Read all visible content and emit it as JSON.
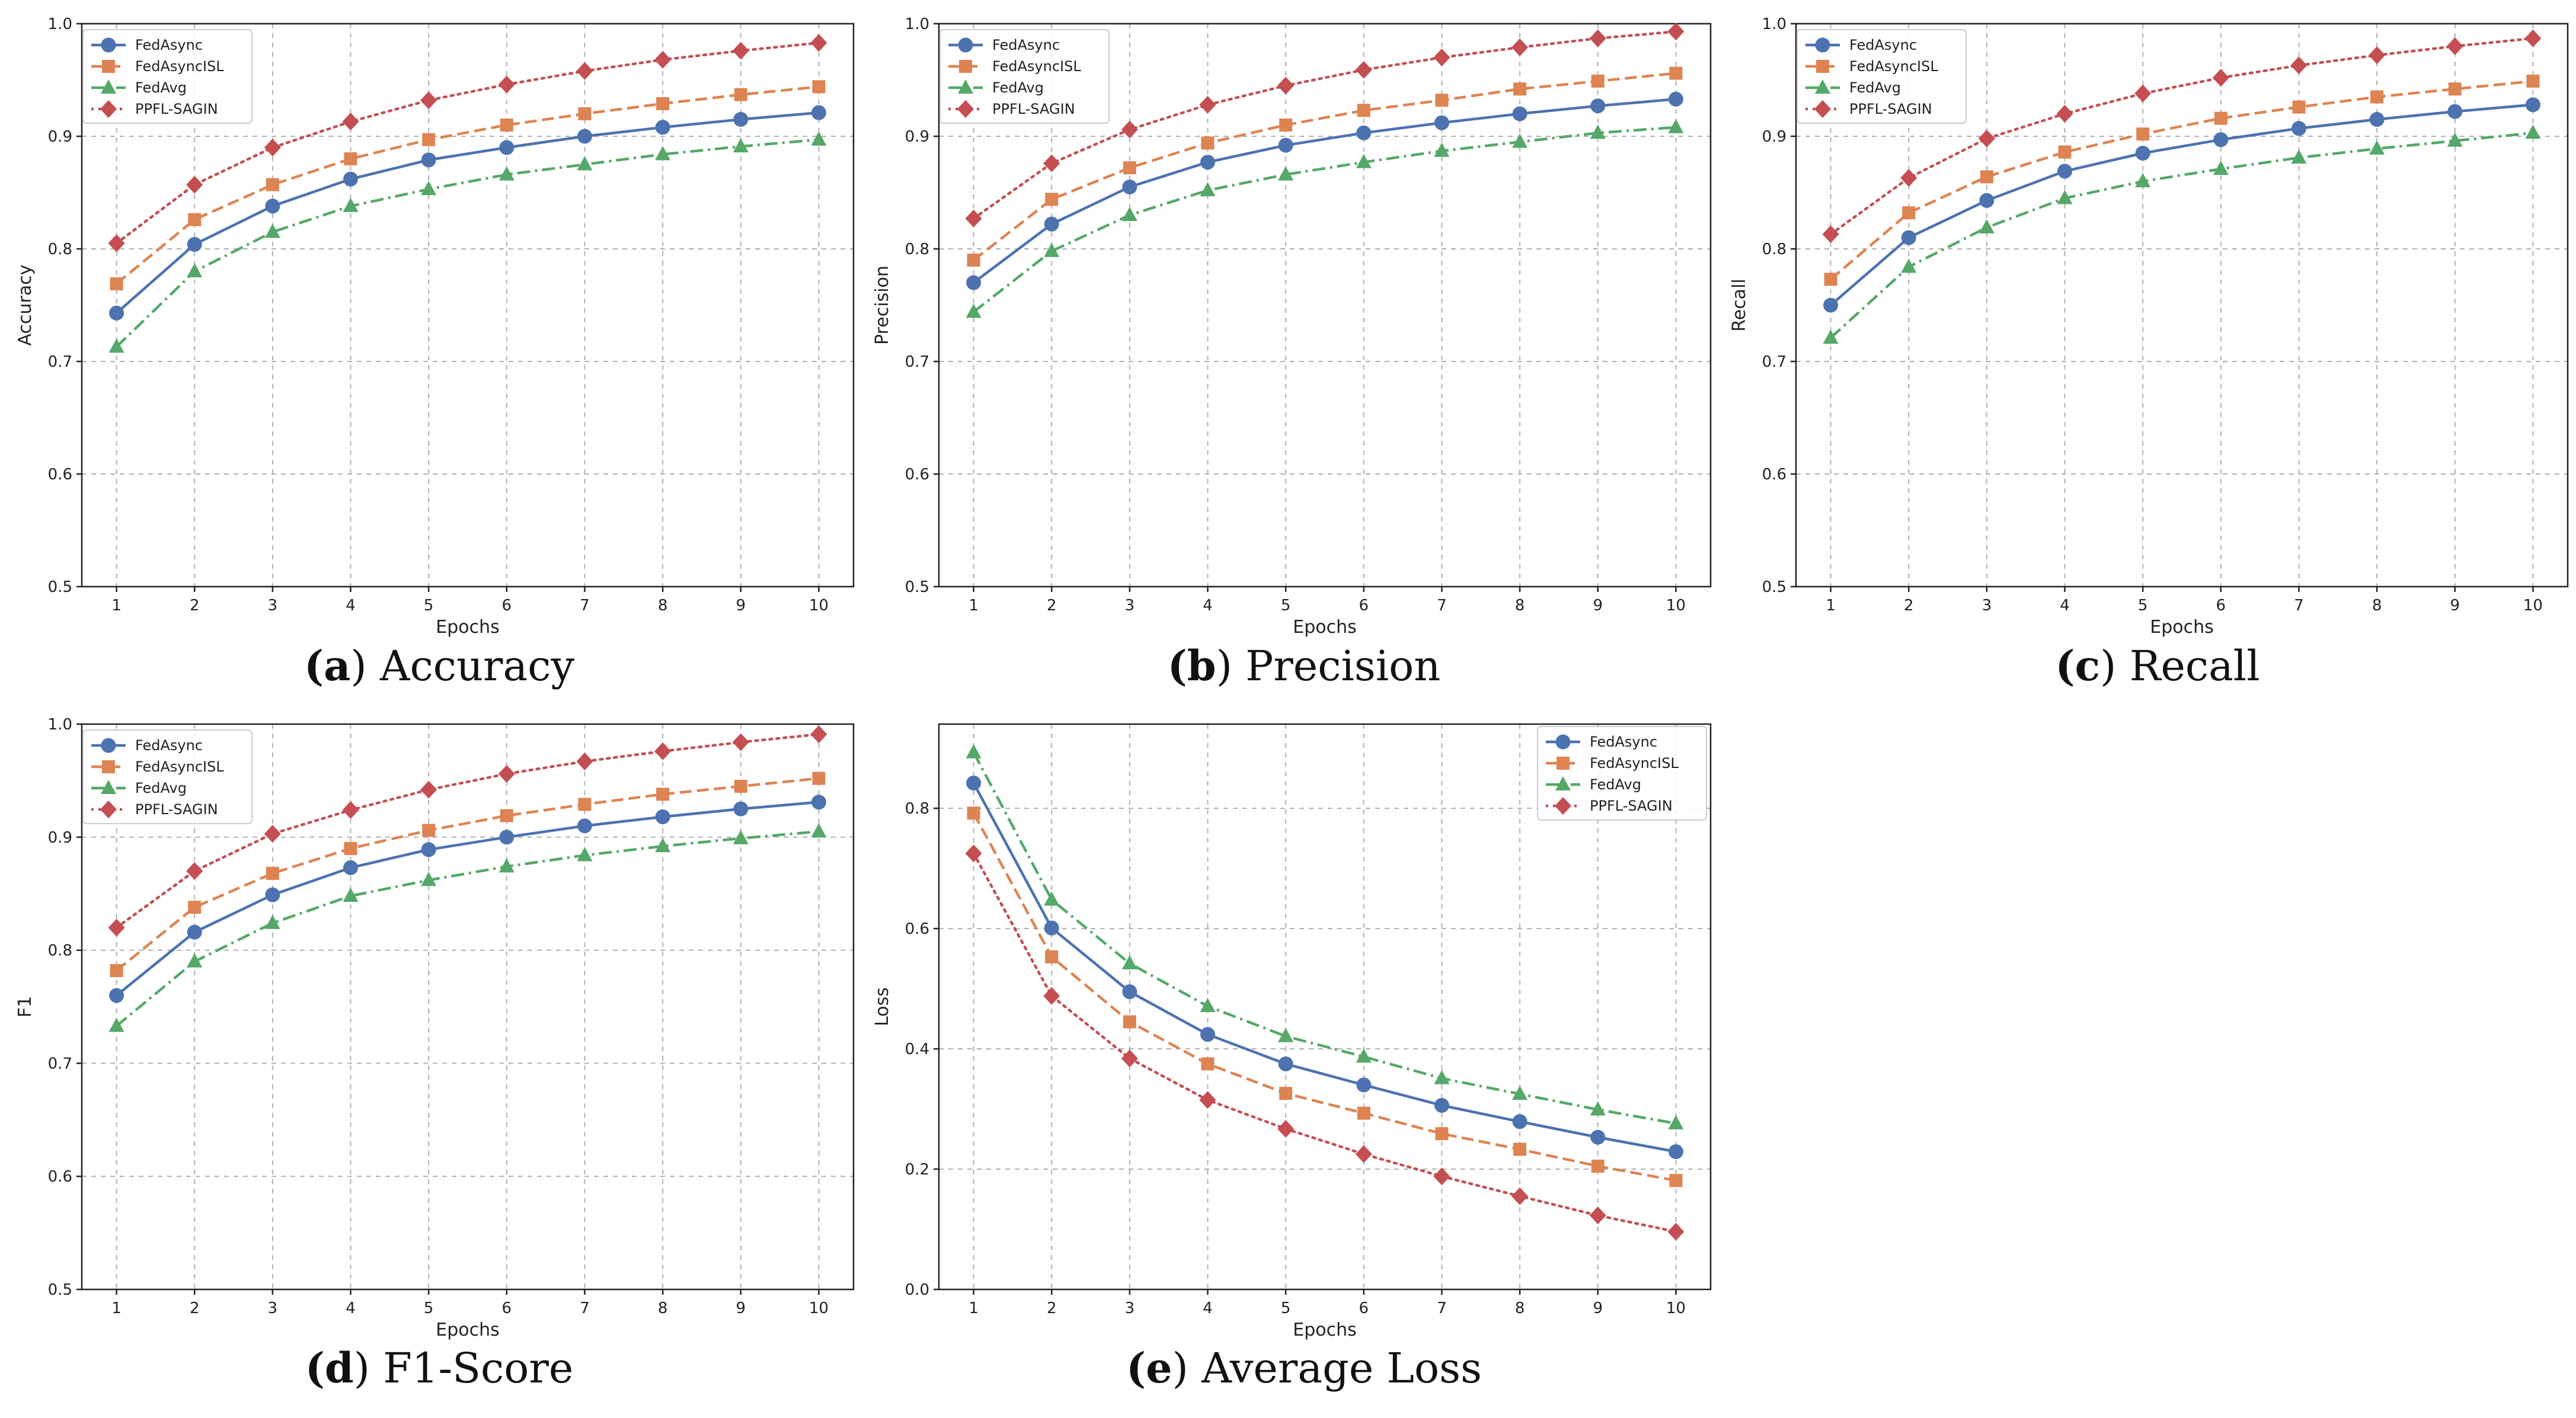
{
  "series_styles": [
    {
      "name": "FedAsync",
      "color": "#4c72b0",
      "marker": "circle",
      "dash": "solid"
    },
    {
      "name": "FedAsyncISL",
      "color": "#dd8452",
      "marker": "square",
      "dash": "dashed"
    },
    {
      "name": "FedAvg",
      "color": "#55a868",
      "marker": "triangle",
      "dash": "dashdot"
    },
    {
      "name": "PPFL-SAGIN",
      "color": "#c44e52",
      "marker": "diamond",
      "dash": "dotted"
    }
  ],
  "chart_data": [
    {
      "id": "a",
      "type": "line",
      "caption_letter": "(a)",
      "caption_title": "Accuracy",
      "xlabel": "Epochs",
      "ylabel": "Accuracy",
      "x": [
        1,
        2,
        3,
        4,
        5,
        6,
        7,
        8,
        9,
        10
      ],
      "x_ticks": [
        "1",
        "2",
        "3",
        "4",
        "5",
        "6",
        "7",
        "8",
        "9",
        "10"
      ],
      "ylim": [
        0.5,
        1.0
      ],
      "y_ticks": [
        0.5,
        0.6,
        0.7,
        0.8,
        0.9,
        1.0
      ],
      "y_tick_labels": [
        "0.5",
        "0.6",
        "0.7",
        "0.8",
        "0.9",
        "1.0"
      ],
      "legend": "top-left",
      "series": [
        {
          "name": "FedAsync",
          "values": [
            0.743,
            0.804,
            0.838,
            0.862,
            0.879,
            0.89,
            0.9,
            0.908,
            0.915,
            0.921
          ]
        },
        {
          "name": "FedAsyncISL",
          "values": [
            0.769,
            0.826,
            0.857,
            0.88,
            0.897,
            0.91,
            0.92,
            0.929,
            0.937,
            0.944
          ]
        },
        {
          "name": "FedAvg",
          "values": [
            0.713,
            0.78,
            0.815,
            0.838,
            0.853,
            0.866,
            0.875,
            0.884,
            0.891,
            0.897
          ]
        },
        {
          "name": "PPFL-SAGIN",
          "values": [
            0.805,
            0.857,
            0.89,
            0.913,
            0.932,
            0.946,
            0.958,
            0.968,
            0.976,
            0.983
          ]
        }
      ]
    },
    {
      "id": "b",
      "type": "line",
      "caption_letter": "(b)",
      "caption_title": "Precision",
      "xlabel": "Epochs",
      "ylabel": "Precision",
      "x": [
        1,
        2,
        3,
        4,
        5,
        6,
        7,
        8,
        9,
        10
      ],
      "x_ticks": [
        "1",
        "2",
        "3",
        "4",
        "5",
        "6",
        "7",
        "8",
        "9",
        "10"
      ],
      "ylim": [
        0.5,
        1.0
      ],
      "y_ticks": [
        0.5,
        0.6,
        0.7,
        0.8,
        0.9,
        1.0
      ],
      "y_tick_labels": [
        "0.5",
        "0.6",
        "0.7",
        "0.8",
        "0.9",
        "1.0"
      ],
      "legend": "top-left",
      "series": [
        {
          "name": "FedAsync",
          "values": [
            0.77,
            0.822,
            0.855,
            0.877,
            0.892,
            0.903,
            0.912,
            0.92,
            0.927,
            0.933
          ]
        },
        {
          "name": "FedAsyncISL",
          "values": [
            0.79,
            0.844,
            0.872,
            0.894,
            0.91,
            0.923,
            0.932,
            0.942,
            0.949,
            0.956
          ]
        },
        {
          "name": "FedAvg",
          "values": [
            0.744,
            0.798,
            0.83,
            0.852,
            0.866,
            0.877,
            0.887,
            0.895,
            0.903,
            0.908
          ]
        },
        {
          "name": "PPFL-SAGIN",
          "values": [
            0.827,
            0.876,
            0.906,
            0.928,
            0.945,
            0.959,
            0.97,
            0.979,
            0.987,
            0.993
          ]
        }
      ]
    },
    {
      "id": "c",
      "type": "line",
      "caption_letter": "(c)",
      "caption_title": "Recall",
      "xlabel": "Epochs",
      "ylabel": "Recall",
      "x": [
        1,
        2,
        3,
        4,
        5,
        6,
        7,
        8,
        9,
        10
      ],
      "x_ticks": [
        "1",
        "2",
        "3",
        "4",
        "5",
        "6",
        "7",
        "8",
        "9",
        "10"
      ],
      "ylim": [
        0.5,
        1.0
      ],
      "y_ticks": [
        0.5,
        0.6,
        0.7,
        0.8,
        0.9,
        1.0
      ],
      "y_tick_labels": [
        "0.5",
        "0.6",
        "0.7",
        "0.8",
        "0.9",
        "1.0"
      ],
      "legend": "top-left",
      "series": [
        {
          "name": "FedAsync",
          "values": [
            0.75,
            0.81,
            0.843,
            0.869,
            0.885,
            0.897,
            0.907,
            0.915,
            0.922,
            0.928
          ]
        },
        {
          "name": "FedAsyncISL",
          "values": [
            0.773,
            0.832,
            0.864,
            0.886,
            0.902,
            0.916,
            0.926,
            0.935,
            0.942,
            0.949
          ]
        },
        {
          "name": "FedAvg",
          "values": [
            0.721,
            0.784,
            0.819,
            0.845,
            0.86,
            0.871,
            0.881,
            0.889,
            0.896,
            0.903
          ]
        },
        {
          "name": "PPFL-SAGIN",
          "values": [
            0.813,
            0.863,
            0.898,
            0.92,
            0.938,
            0.952,
            0.963,
            0.972,
            0.98,
            0.987
          ]
        }
      ]
    },
    {
      "id": "d",
      "type": "line",
      "caption_letter": "(d)",
      "caption_title": "F1-Score",
      "xlabel": "Epochs",
      "ylabel": "F1",
      "x": [
        1,
        2,
        3,
        4,
        5,
        6,
        7,
        8,
        9,
        10
      ],
      "x_ticks": [
        "1",
        "2",
        "3",
        "4",
        "5",
        "6",
        "7",
        "8",
        "9",
        "10"
      ],
      "ylim": [
        0.5,
        1.0
      ],
      "y_ticks": [
        0.5,
        0.6,
        0.7,
        0.8,
        0.9,
        1.0
      ],
      "y_tick_labels": [
        "0.5",
        "0.6",
        "0.7",
        "0.8",
        "0.9",
        "1.0"
      ],
      "legend": "top-left",
      "series": [
        {
          "name": "FedAsync",
          "values": [
            0.76,
            0.816,
            0.849,
            0.873,
            0.889,
            0.9,
            0.91,
            0.918,
            0.925,
            0.931
          ]
        },
        {
          "name": "FedAsyncISL",
          "values": [
            0.782,
            0.838,
            0.868,
            0.89,
            0.906,
            0.919,
            0.929,
            0.938,
            0.945,
            0.952
          ]
        },
        {
          "name": "FedAvg",
          "values": [
            0.733,
            0.79,
            0.824,
            0.848,
            0.862,
            0.874,
            0.884,
            0.892,
            0.899,
            0.905
          ]
        },
        {
          "name": "PPFL-SAGIN",
          "values": [
            0.82,
            0.87,
            0.903,
            0.924,
            0.942,
            0.956,
            0.967,
            0.976,
            0.984,
            0.991
          ]
        }
      ]
    },
    {
      "id": "e",
      "type": "line",
      "caption_letter": "(e)",
      "caption_title": "Average Loss",
      "xlabel": "Epochs",
      "ylabel": "Loss",
      "x": [
        1,
        2,
        3,
        4,
        5,
        6,
        7,
        8,
        9,
        10
      ],
      "x_ticks": [
        "1",
        "2",
        "3",
        "4",
        "5",
        "6",
        "7",
        "8",
        "9",
        "10"
      ],
      "ylim": [
        0.0,
        0.94
      ],
      "y_ticks": [
        0.0,
        0.2,
        0.4,
        0.6,
        0.8
      ],
      "y_tick_labels": [
        "0.0",
        "0.2",
        "0.4",
        "0.6",
        "0.8"
      ],
      "legend": "top-right",
      "series": [
        {
          "name": "FedAsync",
          "values": [
            0.842,
            0.601,
            0.495,
            0.424,
            0.375,
            0.34,
            0.306,
            0.279,
            0.253,
            0.229
          ]
        },
        {
          "name": "FedAsyncISL",
          "values": [
            0.792,
            0.553,
            0.445,
            0.375,
            0.326,
            0.293,
            0.259,
            0.233,
            0.205,
            0.181
          ]
        },
        {
          "name": "FedAvg",
          "values": [
            0.893,
            0.648,
            0.542,
            0.471,
            0.421,
            0.387,
            0.351,
            0.325,
            0.299,
            0.276
          ]
        },
        {
          "name": "PPFL-SAGIN",
          "values": [
            0.725,
            0.488,
            0.384,
            0.315,
            0.267,
            0.225,
            0.188,
            0.155,
            0.123,
            0.096
          ]
        }
      ]
    }
  ]
}
